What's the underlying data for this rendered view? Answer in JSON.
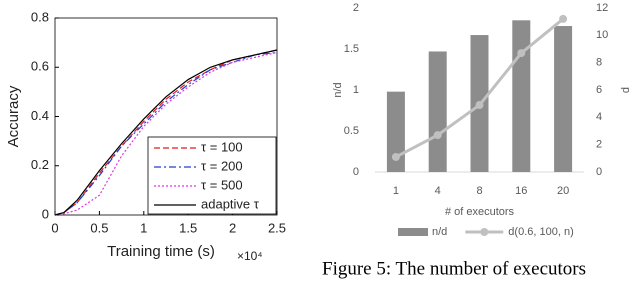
{
  "chart_data": [
    {
      "type": "line",
      "x_label": "Training time (s)",
      "y_label": "Accuracy",
      "x_scale_label": "×10⁴",
      "x": [
        0,
        0.1,
        0.25,
        0.5,
        0.75,
        1.0,
        1.25,
        1.5,
        1.75,
        2.0,
        2.25,
        2.5
      ],
      "series": [
        {
          "name": "τ = 100",
          "color": "#e41a1c",
          "dash": "6,3",
          "values": [
            0,
            0.01,
            0.05,
            0.17,
            0.28,
            0.38,
            0.47,
            0.54,
            0.59,
            0.63,
            0.65,
            0.67
          ]
        },
        {
          "name": "τ = 200",
          "color": "#1f3fd1",
          "dash": "7,3,2,3",
          "values": [
            0,
            0.01,
            0.05,
            0.16,
            0.28,
            0.37,
            0.46,
            0.53,
            0.59,
            0.62,
            0.65,
            0.66
          ]
        },
        {
          "name": "τ = 500",
          "color": "#e033e0",
          "dash": "2,2",
          "values": [
            0,
            0.005,
            0.02,
            0.08,
            0.24,
            0.36,
            0.45,
            0.52,
            0.58,
            0.62,
            0.64,
            0.66
          ]
        },
        {
          "name": "adaptive τ",
          "color": "#000000",
          "dash": "",
          "values": [
            0,
            0.01,
            0.06,
            0.18,
            0.29,
            0.39,
            0.48,
            0.55,
            0.6,
            0.63,
            0.65,
            0.67
          ]
        }
      ],
      "xlim": [
        0,
        2.5
      ],
      "xticks": [
        0,
        0.5,
        1,
        1.5,
        2,
        2.5
      ],
      "ylim": [
        0,
        0.8
      ],
      "yticks": [
        0,
        0.2,
        0.4,
        0.6,
        0.8
      ]
    },
    {
      "type": "bar",
      "x_label": "# of executors",
      "y_label": "n/d",
      "y2_label": "d",
      "categories": [
        "1",
        "4",
        "8",
        "16",
        "20"
      ],
      "series": [
        {
          "name": "n/d",
          "type": "bar",
          "color": "#8c8c8c",
          "values": [
            0.98,
            1.47,
            1.67,
            1.85,
            1.78
          ]
        },
        {
          "name": "d(0.6, 100, n)",
          "type": "line",
          "axis": "y2",
          "color": "#c0c0c0",
          "values": [
            1.1,
            2.7,
            4.9,
            8.7,
            11.2
          ]
        }
      ],
      "ylim": [
        0,
        2
      ],
      "yticks": [
        0,
        0.5,
        1,
        1.5,
        2
      ],
      "y2lim": [
        0,
        12
      ],
      "y2ticks": [
        0,
        2,
        4,
        6,
        8,
        10,
        12
      ]
    }
  ],
  "caption": "Figure 5: The number of executors"
}
